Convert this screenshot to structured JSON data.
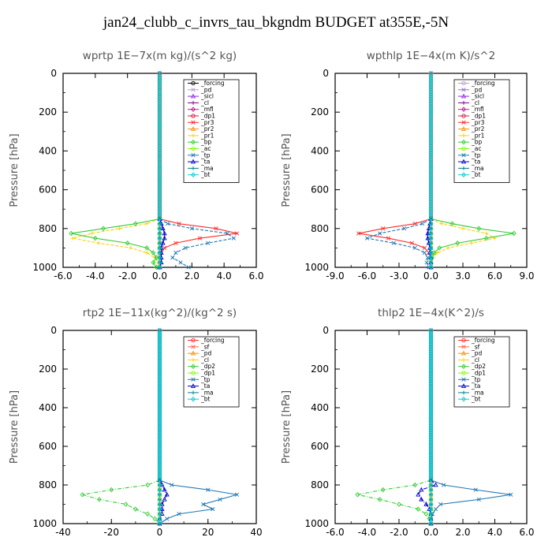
{
  "title": "jan24_clubb_c_invrs_tau_bkgndm  BUDGET at355E,-5N",
  "chart_data": [
    {
      "type": "line",
      "title": "wprtp   1E−7x(m kg)/(s^2 kg)",
      "ylabel": "Pressure [hPa]",
      "xlim": [
        -6.0,
        6.0
      ],
      "ylim": [
        1000,
        0
      ],
      "xticks": [
        -6.0,
        -4.0,
        -2.0,
        0.0,
        2.0,
        4.0,
        6.0
      ],
      "xtick_labels": [
        "-6.0",
        "-4.0",
        "-2.0",
        "0.0",
        "2.0",
        "4.0",
        "6.0"
      ],
      "yticks": [
        0,
        200,
        400,
        600,
        800,
        1000
      ],
      "legend": "top-right",
      "p": [
        750,
        775,
        800,
        825,
        850,
        875,
        900,
        925,
        950,
        975,
        1000
      ],
      "series": [
        {
          "name": "_forcing",
          "color": "#000000",
          "values": [
            0,
            0,
            0,
            0,
            0,
            0,
            0,
            0,
            0,
            0,
            0
          ]
        },
        {
          "name": "_pd",
          "color": "#b19cd9",
          "values": [
            0,
            0,
            0,
            0,
            0,
            0,
            0,
            0,
            0,
            0,
            0
          ]
        },
        {
          "name": "_sicl",
          "color": "#8a2be2",
          "values": [
            0,
            0,
            0,
            0,
            0,
            0,
            0,
            0,
            0,
            0,
            0
          ]
        },
        {
          "name": "_cl",
          "color": "#800080",
          "values": [
            0,
            0,
            0,
            0,
            0,
            0,
            0,
            0,
            0,
            0,
            0
          ]
        },
        {
          "name": "_mfl",
          "color": "#c71585",
          "values": [
            0,
            0,
            0,
            0,
            0,
            0,
            0,
            0,
            0,
            0,
            0
          ]
        },
        {
          "name": "_dp1",
          "color": "#dc143c",
          "values": [
            0,
            0,
            0,
            0,
            0,
            0,
            0,
            0,
            0,
            0,
            0
          ]
        },
        {
          "name": "_pr3",
          "color": "#ff2a2a",
          "values": [
            0,
            1.2,
            3.5,
            4.8,
            2.5,
            1.0,
            0.3,
            0.1,
            0,
            0,
            0
          ]
        },
        {
          "name": "_pr2",
          "color": "#ff8c00",
          "values": [
            0,
            0,
            0,
            0,
            0,
            0,
            0,
            0,
            0,
            0,
            0
          ]
        },
        {
          "name": "_pr1",
          "color": "#ffd000",
          "values": [
            0,
            -0.8,
            -2.5,
            -4.2,
            -5.4,
            -3.8,
            -1.8,
            -0.8,
            -0.3,
            -0.1,
            0
          ]
        },
        {
          "name": "_bp",
          "color": "#32cd32",
          "values": [
            0,
            -1.5,
            -3.5,
            -5.5,
            -4.0,
            -2.0,
            -0.8,
            -0.4,
            -0.2,
            -0.4,
            -0.2
          ]
        },
        {
          "name": "_ac",
          "color": "#7cfc00",
          "values": [
            0,
            0,
            0,
            0,
            0,
            0,
            0,
            0,
            0,
            0,
            0
          ]
        },
        {
          "name": "_tp",
          "color": "#1f77b4",
          "values": [
            0,
            0.5,
            2.0,
            4.2,
            4.6,
            3.0,
            1.6,
            1.0,
            0.8,
            1.3,
            1.8
          ]
        },
        {
          "name": "_ta",
          "color": "#0000cd",
          "values": [
            0,
            0.1,
            0.2,
            0.3,
            0.3,
            0.2,
            0.1,
            0.1,
            0.1,
            0.1,
            0
          ]
        },
        {
          "name": "_ma",
          "color": "#008080",
          "values": [
            0,
            0,
            0,
            0,
            0,
            0,
            0,
            0,
            0,
            0,
            0
          ]
        },
        {
          "name": "_bt",
          "color": "#00ced1",
          "values": [
            0,
            0,
            0,
            0,
            0,
            0,
            0,
            0,
            0,
            0,
            0
          ]
        }
      ]
    },
    {
      "type": "line",
      "title": "wpthlp   1E−4x(m K)/s^2",
      "ylabel": "Pressure [hPa]",
      "xlim": [
        -9.0,
        9.0
      ],
      "ylim": [
        1000,
        0
      ],
      "xticks": [
        -9.0,
        -6.0,
        -3.0,
        0.0,
        3.0,
        6.0,
        9.0
      ],
      "xtick_labels": [
        "-9.0",
        "-6.0",
        "-3.0",
        "0.0",
        "3.0",
        "6.0",
        "9.0"
      ],
      "yticks": [
        0,
        200,
        400,
        600,
        800,
        1000
      ],
      "legend": "top-right",
      "p": [
        750,
        775,
        800,
        825,
        850,
        875,
        900,
        925,
        950,
        975,
        1000
      ],
      "series": [
        {
          "name": "_forcing",
          "color": "#b19cd9",
          "values": [
            0,
            0,
            0,
            0,
            0,
            0,
            0,
            0,
            0,
            0,
            0
          ]
        },
        {
          "name": "_pd",
          "color": "#9370db",
          "values": [
            0,
            0,
            0,
            0,
            0,
            0,
            0,
            0,
            0,
            0,
            0
          ]
        },
        {
          "name": "_sicl",
          "color": "#8a2be2",
          "values": [
            0,
            0,
            0,
            0,
            0,
            0,
            0,
            0,
            0,
            0,
            0
          ]
        },
        {
          "name": "_cl",
          "color": "#800080",
          "values": [
            0,
            0,
            0,
            0,
            0,
            0,
            0,
            0,
            0,
            0,
            0
          ]
        },
        {
          "name": "_mfl",
          "color": "#c71585",
          "values": [
            0,
            0,
            0,
            0,
            0,
            0,
            0,
            0,
            0,
            0,
            0
          ]
        },
        {
          "name": "_dp1",
          "color": "#dc143c",
          "values": [
            0,
            0,
            0,
            0,
            0,
            0,
            0,
            0,
            0,
            0,
            0
          ]
        },
        {
          "name": "_pr3",
          "color": "#ff2a2a",
          "values": [
            0,
            -1.5,
            -4.5,
            -6.8,
            -4.0,
            -1.8,
            -0.6,
            -0.2,
            0,
            0,
            0
          ]
        },
        {
          "name": "_pr2",
          "color": "#ff8c00",
          "values": [
            0,
            0,
            0,
            0,
            0,
            0,
            0,
            0,
            0,
            0,
            0
          ]
        },
        {
          "name": "_pr1",
          "color": "#ffd000",
          "values": [
            0,
            1.0,
            3.0,
            5.2,
            6.0,
            3.8,
            1.6,
            0.6,
            0.2,
            0,
            0
          ]
        },
        {
          "name": "_bp",
          "color": "#32cd32",
          "values": [
            0,
            2.0,
            4.5,
            7.8,
            5.2,
            2.5,
            0.8,
            0.3,
            0.1,
            0,
            0
          ]
        },
        {
          "name": "_ac",
          "color": "#7cfc00",
          "values": [
            0,
            0,
            0,
            0,
            0,
            0,
            0,
            0,
            0,
            0,
            0
          ]
        },
        {
          "name": "_tp",
          "color": "#1f77b4",
          "values": [
            0,
            -0.8,
            -2.5,
            -4.8,
            -6.0,
            -3.5,
            -1.5,
            -0.6,
            -0.3,
            -0.4,
            -0.2
          ]
        },
        {
          "name": "_ta",
          "color": "#0000cd",
          "values": [
            0,
            -0.1,
            -0.2,
            -0.3,
            -0.3,
            -0.2,
            -0.1,
            -0.1,
            0,
            0,
            0
          ]
        },
        {
          "name": "_ma",
          "color": "#008080",
          "values": [
            0,
            0,
            0,
            0,
            0,
            0,
            0,
            0,
            0,
            0,
            0
          ]
        },
        {
          "name": "_bt",
          "color": "#00ced1",
          "values": [
            0,
            0,
            0,
            0,
            0,
            0,
            0,
            0,
            0,
            0,
            0
          ]
        }
      ]
    },
    {
      "type": "line",
      "title": "rtp2   1E−11x(kg^2)/(kg^2 s)",
      "ylabel": "Pressure [hPa]",
      "xlim": [
        -40,
        40
      ],
      "ylim": [
        1000,
        0
      ],
      "xticks": [
        -40,
        -20,
        0,
        20,
        40
      ],
      "xtick_labels": [
        "-40",
        "-20",
        "0",
        "20",
        "40"
      ],
      "yticks": [
        0,
        200,
        400,
        600,
        800,
        1000
      ],
      "legend": "top-right",
      "p": [
        775,
        800,
        825,
        850,
        875,
        900,
        925,
        950,
        975,
        1000
      ],
      "series": [
        {
          "name": "_forcing",
          "color": "#ff2a2a",
          "values": [
            0,
            0,
            0,
            0,
            0,
            0,
            0,
            0,
            0,
            0
          ]
        },
        {
          "name": "_sf",
          "color": "#ff6347",
          "values": [
            0,
            0,
            0,
            0,
            0,
            0,
            0,
            0,
            0,
            0
          ]
        },
        {
          "name": "_pd",
          "color": "#ff8c00",
          "values": [
            0,
            0,
            0,
            0,
            0,
            0,
            0,
            0,
            0,
            0
          ]
        },
        {
          "name": "_cl",
          "color": "#ffd000",
          "values": [
            0,
            0,
            0,
            0,
            0,
            0,
            0,
            0,
            0,
            0
          ]
        },
        {
          "name": "_dp2",
          "color": "#32cd32",
          "values": [
            0,
            -5,
            -20,
            -32,
            -25,
            -14,
            -10,
            -5,
            -2,
            0
          ]
        },
        {
          "name": "_dp1",
          "color": "#7cfc00",
          "values": [
            0,
            0,
            0,
            0,
            0,
            0,
            0,
            0,
            0,
            0
          ]
        },
        {
          "name": "_tp",
          "color": "#1f77b4",
          "values": [
            0,
            5,
            20,
            32,
            25,
            18,
            22,
            8,
            3,
            0
          ]
        },
        {
          "name": "_ta",
          "color": "#0000cd",
          "values": [
            0,
            1,
            2,
            3,
            2,
            1,
            1,
            1,
            0,
            0
          ]
        },
        {
          "name": "_ma",
          "color": "#008080",
          "values": [
            0,
            0,
            0,
            0,
            0,
            0,
            0,
            0,
            0,
            0
          ]
        },
        {
          "name": "_bt",
          "color": "#00ced1",
          "values": [
            0,
            0,
            0,
            0,
            0,
            0,
            0,
            0,
            0,
            0
          ]
        }
      ]
    },
    {
      "type": "line",
      "title": "thlp2   1E−4x(K^2)/s",
      "ylabel": "Pressure [hPa]",
      "xlim": [
        -6.0,
        6.0
      ],
      "ylim": [
        1000,
        0
      ],
      "xticks": [
        -6.0,
        -4.0,
        -2.0,
        0.0,
        2.0,
        4.0,
        6.0
      ],
      "xtick_labels": [
        "-6.0",
        "-4.0",
        "-2.0",
        "0.0",
        "2.0",
        "4.0",
        "6.0"
      ],
      "yticks": [
        0,
        200,
        400,
        600,
        800,
        1000
      ],
      "legend": "top-right",
      "p": [
        775,
        800,
        825,
        850,
        875,
        900,
        925,
        950,
        975,
        1000
      ],
      "series": [
        {
          "name": "_forcing",
          "color": "#ff2a2a",
          "values": [
            0,
            0,
            0,
            0,
            0,
            0,
            0,
            0,
            0,
            0
          ]
        },
        {
          "name": "_sf",
          "color": "#ff6347",
          "values": [
            0,
            0,
            0,
            0,
            0,
            0,
            0,
            0,
            0,
            0
          ]
        },
        {
          "name": "_pd",
          "color": "#ff8c00",
          "values": [
            0,
            0,
            0,
            0,
            0,
            0,
            0,
            0,
            0,
            0
          ]
        },
        {
          "name": "_cl",
          "color": "#ffd000",
          "values": [
            0,
            0,
            0,
            0,
            0,
            0,
            0,
            0,
            0,
            0
          ]
        },
        {
          "name": "_dp2",
          "color": "#32cd32",
          "values": [
            0,
            -1.0,
            -3.0,
            -4.6,
            -3.2,
            -2.0,
            -0.8,
            -0.3,
            -0.1,
            0
          ]
        },
        {
          "name": "_dp1",
          "color": "#7cfc00",
          "values": [
            0,
            0,
            0,
            0,
            0,
            0,
            0,
            0,
            0,
            0
          ]
        },
        {
          "name": "_tp",
          "color": "#1f77b4",
          "values": [
            0,
            0.8,
            2.8,
            5.0,
            3.0,
            0.6,
            0.3,
            0.1,
            0,
            0
          ]
        },
        {
          "name": "_ta",
          "color": "#0000cd",
          "values": [
            0,
            0.3,
            -0.6,
            -0.8,
            -0.6,
            -0.3,
            -0.1,
            0,
            0,
            0
          ]
        },
        {
          "name": "_ma",
          "color": "#008080",
          "values": [
            0,
            0,
            0,
            0,
            0,
            0,
            0,
            0,
            0,
            0
          ]
        },
        {
          "name": "_bt",
          "color": "#00ced1",
          "values": [
            0,
            0,
            0,
            0,
            0,
            0,
            0,
            0,
            0,
            0
          ]
        }
      ]
    }
  ]
}
